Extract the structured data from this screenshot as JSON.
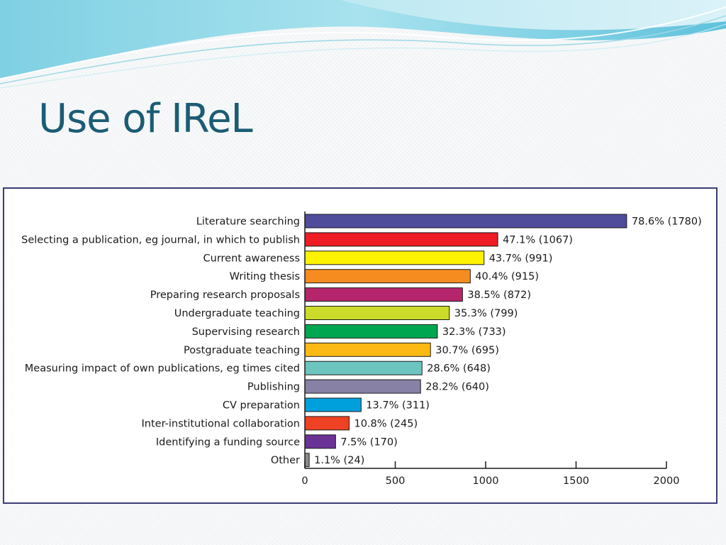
{
  "slide": {
    "title": "Use of IReL"
  },
  "chart_data": {
    "type": "bar",
    "orientation": "horizontal",
    "title": "",
    "xlabel": "",
    "ylabel": "",
    "xlim": [
      0,
      2000
    ],
    "ticks": [
      0,
      500,
      1000,
      1500,
      2000
    ],
    "grid": false,
    "legend": "none",
    "categories": [
      "Literature searching",
      "Selecting a publication, eg journal, in which to publish",
      "Current awareness",
      "Writing thesis",
      "Preparing research proposals",
      "Undergraduate teaching",
      "Supervising research",
      "Postgraduate teaching",
      "Measuring impact of own publications, eg times cited",
      "Publishing",
      "CV preparation",
      "Inter-institutional collaboration",
      "Identifying a funding source",
      "Other"
    ],
    "values": [
      1780,
      1067,
      991,
      915,
      872,
      799,
      733,
      695,
      648,
      640,
      311,
      245,
      170,
      24
    ],
    "labels": [
      "78.6% (1780)",
      "47.1% (1067)",
      "43.7% (991)",
      "40.4% (915)",
      "38.5% (872)",
      "35.3% (799)",
      "32.3% (733)",
      "30.7% (695)",
      "28.6% (648)",
      "28.2% (640)",
      "13.7% (311)",
      "10.8% (245)",
      "7.5% (170)",
      "1.1% (24)"
    ],
    "colors": [
      "#4f4c9c",
      "#ee1c25",
      "#fff200",
      "#f68b1f",
      "#b5256b",
      "#cbdb2a",
      "#00a650",
      "#fdb913",
      "#6cc5bf",
      "#8781a6",
      "#00a0dc",
      "#ef4123",
      "#6a3296",
      "#8a8a8a"
    ]
  }
}
